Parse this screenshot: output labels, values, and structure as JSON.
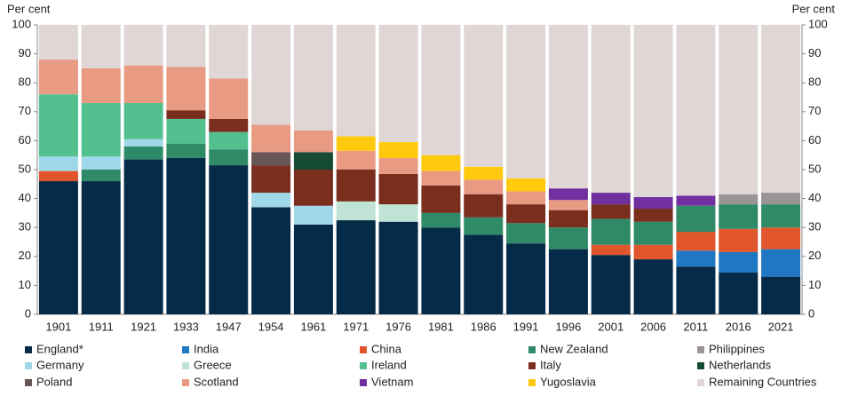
{
  "chart_data": {
    "type": "stacked_bar",
    "y_label": "Per cent",
    "y2_label": "Per cent",
    "categories": [
      "1901",
      "1911",
      "1921",
      "1933",
      "1947",
      "1954",
      "1961",
      "1971",
      "1976",
      "1981",
      "1986",
      "1991",
      "1996",
      "2001",
      "2006",
      "2011",
      "2016",
      "2021"
    ],
    "ylim": [
      0,
      100
    ],
    "yticks": [
      0,
      10,
      20,
      30,
      40,
      50,
      60,
      70,
      80,
      90,
      100
    ],
    "y2lim": [
      0,
      100
    ],
    "y2ticks": [
      0,
      10,
      20,
      30,
      40,
      50,
      60,
      70,
      80,
      90,
      100
    ],
    "series": [
      {
        "name": "England*",
        "color": "#062b48",
        "values": [
          46,
          46,
          53.5,
          54,
          51.5,
          37,
          31,
          32.5,
          32,
          30,
          27.5,
          24.5,
          22.5,
          20.5,
          19,
          16.5,
          14.5,
          13
        ]
      },
      {
        "name": "India",
        "color": "#1f78c1",
        "values": [
          null,
          null,
          null,
          null,
          null,
          null,
          null,
          null,
          null,
          null,
          null,
          null,
          null,
          null,
          null,
          5.5,
          7,
          9.5
        ]
      },
      {
        "name": "China",
        "color": "#e0552b",
        "values": [
          3.5,
          null,
          null,
          null,
          null,
          null,
          null,
          null,
          null,
          null,
          null,
          null,
          null,
          3.5,
          5,
          6.5,
          8,
          7.5
        ]
      },
      {
        "name": "New Zealand",
        "color": "#2f8a68",
        "values": [
          null,
          4,
          4.5,
          5,
          5.5,
          null,
          null,
          null,
          null,
          5,
          6,
          7,
          7.5,
          9,
          8,
          9,
          8.5,
          8
        ]
      },
      {
        "name": "Philippines",
        "color": "#9b9494",
        "values": [
          null,
          null,
          null,
          null,
          null,
          null,
          null,
          null,
          null,
          null,
          null,
          null,
          null,
          null,
          null,
          null,
          3.5,
          4
        ]
      },
      {
        "name": "Germany",
        "color": "#9fd8e8",
        "values": [
          5,
          4.5,
          2.5,
          null,
          null,
          5,
          6.5,
          null,
          null,
          null,
          null,
          null,
          null,
          null,
          null,
          null,
          null,
          null
        ]
      },
      {
        "name": "Greece",
        "color": "#bfe3d4",
        "values": [
          null,
          null,
          null,
          null,
          null,
          null,
          null,
          6.5,
          6,
          null,
          null,
          null,
          null,
          null,
          null,
          null,
          null,
          null
        ]
      },
      {
        "name": "Ireland",
        "color": "#52c08f",
        "values": [
          21.5,
          18.5,
          12.5,
          8.5,
          6,
          null,
          null,
          null,
          null,
          null,
          null,
          null,
          null,
          null,
          null,
          null,
          null,
          null
        ]
      },
      {
        "name": "Italy",
        "color": "#7a2e1d",
        "values": [
          null,
          null,
          null,
          3,
          4.5,
          9.5,
          12.5,
          11,
          10.5,
          9.5,
          8,
          6.5,
          6,
          5,
          4.5,
          null,
          null,
          null
        ]
      },
      {
        "name": "Netherlands",
        "color": "#154a33",
        "values": [
          null,
          null,
          null,
          null,
          null,
          null,
          6,
          null,
          null,
          null,
          null,
          null,
          null,
          null,
          null,
          null,
          null,
          null
        ]
      },
      {
        "name": "Poland",
        "color": "#665656",
        "values": [
          null,
          null,
          null,
          null,
          null,
          4.5,
          null,
          null,
          null,
          null,
          null,
          null,
          null,
          null,
          null,
          null,
          null,
          null
        ]
      },
      {
        "name": "Scotland",
        "color": "#e89b82",
        "values": [
          12,
          12,
          13,
          15,
          14,
          9.5,
          7.5,
          6.5,
          5.5,
          5,
          5,
          4.5,
          3.5,
          null,
          null,
          null,
          null,
          null
        ]
      },
      {
        "name": "Vietnam",
        "color": "#7030a0",
        "values": [
          null,
          null,
          null,
          null,
          null,
          null,
          null,
          null,
          null,
          null,
          null,
          null,
          4,
          4,
          4,
          3.5,
          null,
          null
        ]
      },
      {
        "name": "Yugoslavia",
        "color": "#ffc90e",
        "values": [
          null,
          null,
          null,
          null,
          null,
          null,
          null,
          5,
          5.5,
          5.5,
          4.5,
          4.5,
          null,
          null,
          null,
          null,
          null,
          null
        ]
      },
      {
        "name": "Remaining Countries",
        "color": "#e0d6d6",
        "values": [
          12,
          15,
          14,
          14.5,
          18.5,
          34.5,
          36.5,
          38.5,
          40.5,
          45,
          49,
          53,
          56.5,
          58,
          59.5,
          59,
          58.5,
          58
        ]
      }
    ]
  }
}
